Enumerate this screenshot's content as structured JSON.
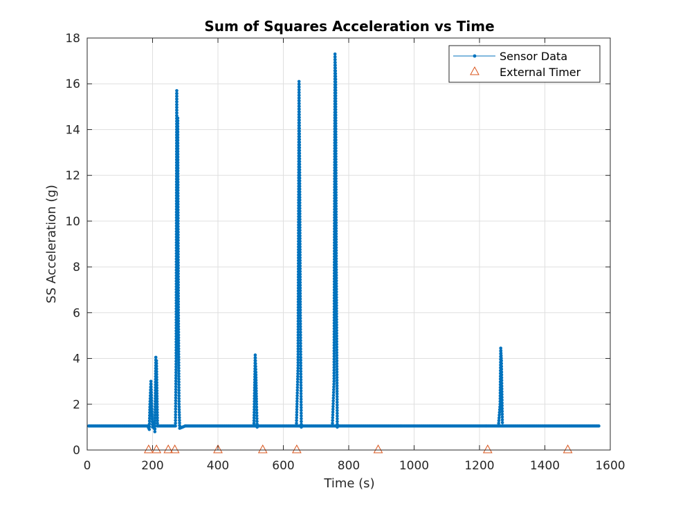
{
  "chart_data": {
    "type": "line",
    "title": "Sum of Squares Acceleration vs Time",
    "xlabel": "Time (s)",
    "ylabel": "SS Acceleration (g)",
    "xlim": [
      0,
      1600
    ],
    "ylim": [
      0,
      18
    ],
    "xticks": [
      0,
      200,
      400,
      600,
      800,
      1000,
      1200,
      1400,
      1600
    ],
    "yticks": [
      0,
      2,
      4,
      6,
      8,
      10,
      12,
      14,
      16,
      18
    ],
    "grid": true,
    "legend_position": "top-right",
    "colors": {
      "sensor": "#0072BD",
      "timer": "#D95319"
    },
    "baseline_level": 1.05,
    "series": [
      {
        "name": "Sensor Data",
        "kind": "line-with-markers",
        "segments": [
          {
            "x": [
              5,
              185
            ],
            "y": [
              1.05,
              1.05
            ]
          },
          {
            "x": [
              185,
              190,
              192,
              195,
              198,
              200,
              203,
              207,
              210,
              212,
              215
            ],
            "y": [
              1.05,
              0.9,
              2.0,
              3.0,
              1.8,
              1.0,
              1.2,
              0.8,
              4.05,
              3.9,
              1.05
            ]
          },
          {
            "x": [
              215,
              270,
              272,
              274,
              275,
              277,
              279,
              281,
              283,
              300
            ],
            "y": [
              1.05,
              1.05,
              4.0,
              15.7,
              9.0,
              14.5,
              6.0,
              2.0,
              0.95,
              1.05
            ]
          },
          {
            "x": [
              300,
              960
            ],
            "y": [
              1.05,
              1.05
            ]
          },
          {
            "x": [
              510,
              514,
              516,
              518,
              520,
              524
            ],
            "y": [
              1.05,
              4.15,
              3.4,
              2.0,
              1.0,
              1.05
            ]
          },
          {
            "x": [
              640,
              645,
              648,
              650,
              652,
              655,
              658
            ],
            "y": [
              1.05,
              3.7,
              16.1,
              12.0,
              6.0,
              1.0,
              1.05
            ]
          },
          {
            "x": [
              750,
              755,
              758,
              760,
              762,
              765,
              768
            ],
            "y": [
              1.05,
              3.0,
              17.3,
              16.2,
              8.0,
              1.0,
              1.05
            ]
          },
          {
            "x": [
              960,
              1220
            ],
            "y": [
              1.05,
              1.05
            ]
          },
          {
            "x": [
              1220,
              1565
            ],
            "y": [
              1.05,
              1.05
            ]
          },
          {
            "x": [
              1258,
              1263,
              1265,
              1267,
              1270,
              1273
            ],
            "y": [
              1.05,
              2.0,
              4.45,
              3.9,
              1.2,
              1.05
            ]
          }
        ]
      },
      {
        "name": "External Timer",
        "kind": "markers",
        "marker": "triangle",
        "x": [
          188,
          212,
          248,
          268,
          400,
          537,
          641,
          890,
          1225,
          1470
        ],
        "y": [
          0,
          0,
          0,
          0,
          0,
          0,
          0,
          0,
          0,
          0
        ]
      }
    ]
  }
}
